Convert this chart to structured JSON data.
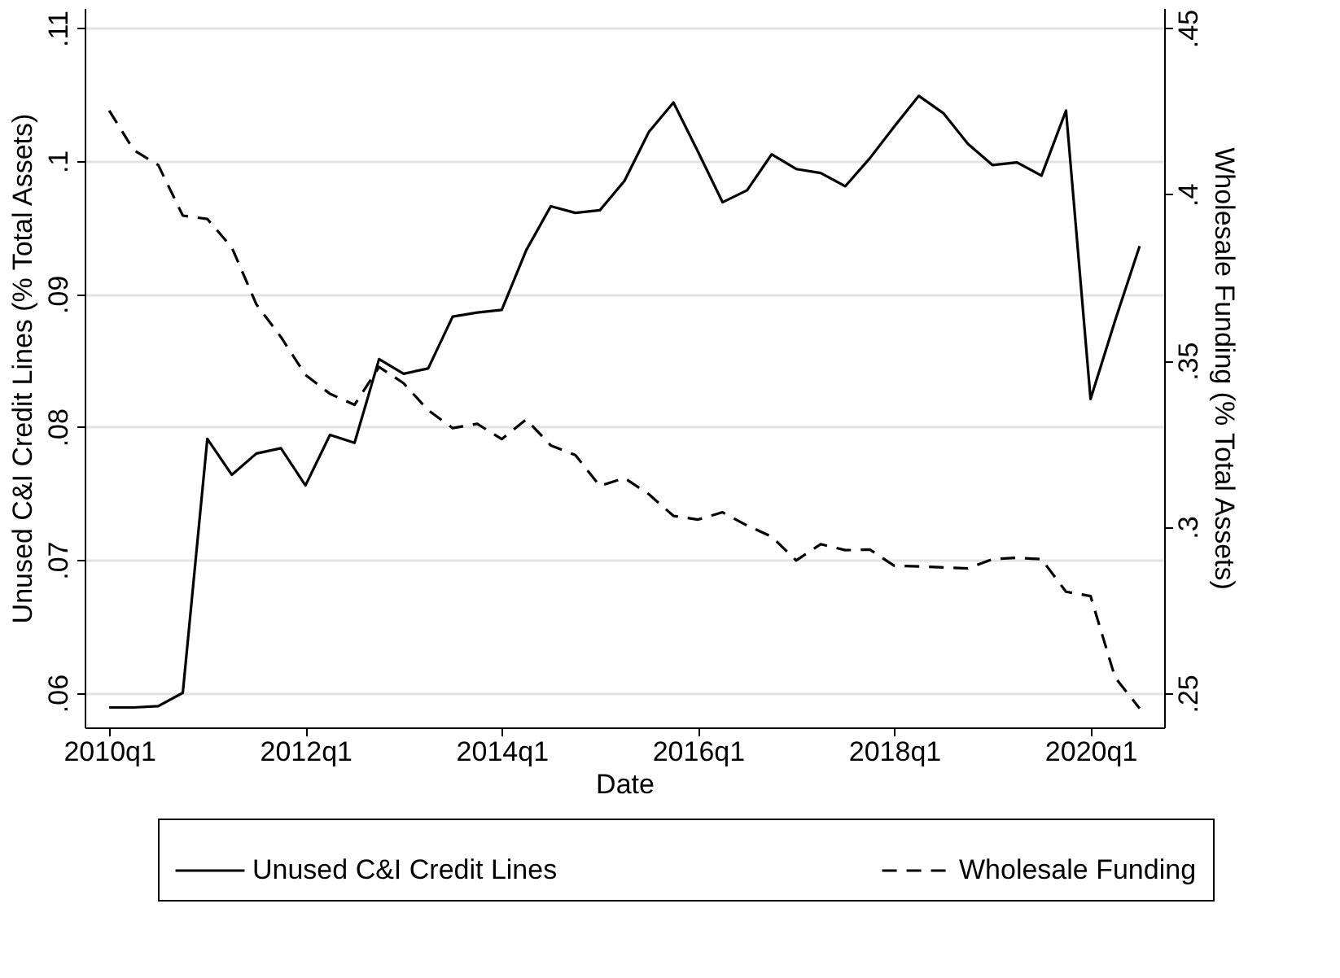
{
  "chart_data": {
    "type": "line",
    "xlabel": "Date",
    "ylabel": "Unused C&I Credit Lines (% Total Assets)",
    "y2label": "Wholesale Funding (% Total Assets)",
    "categories": [
      "2010q1",
      null,
      null,
      null,
      null,
      null,
      null,
      null,
      "2012q1",
      null,
      null,
      null,
      null,
      null,
      null,
      null,
      "2014q1",
      null,
      null,
      null,
      null,
      null,
      null,
      null,
      "2016q1",
      null,
      null,
      null,
      null,
      null,
      null,
      null,
      "2018q1",
      null,
      null,
      null,
      null,
      null,
      null,
      null,
      "2020q1",
      null,
      null
    ],
    "series": [
      {
        "name": "Unused C&I Credit Lines",
        "color": "#000000",
        "line_style": "solid",
        "values": [
          0.0589,
          0.0589,
          0.059,
          0.06,
          0.0791,
          0.0764,
          0.078,
          0.0784,
          0.0756,
          0.0794,
          0.0788,
          0.0851,
          0.084,
          0.0844,
          0.0883,
          0.0886,
          0.0888,
          0.0933,
          0.0966,
          0.0961,
          0.0963,
          0.0985,
          0.1022,
          0.1044,
          0.1007,
          0.0969,
          0.0978,
          0.1005,
          0.0994,
          0.0991,
          0.0981,
          0.1002,
          0.1026,
          0.1049,
          0.1036,
          0.1013,
          0.0997,
          0.0999,
          0.0989,
          0.1038,
          0.0821,
          0.088,
          0.0936
        ]
      },
      {
        "name": "Wholesale Funding",
        "color": "#000000",
        "line_style": "dashed",
        "axis": "y2",
        "values": [
          0.4252,
          0.4133,
          0.4088,
          0.3936,
          0.3926,
          0.384,
          0.3669,
          0.3571,
          0.3457,
          0.34,
          0.3367,
          0.3481,
          0.3432,
          0.3351,
          0.3297,
          0.331,
          0.3264,
          0.3323,
          0.3245,
          0.3216,
          0.3123,
          0.3147,
          0.3098,
          0.3033,
          0.3022,
          0.3044,
          0.3004,
          0.2971,
          0.2899,
          0.2948,
          0.293,
          0.2932,
          0.2883,
          0.2881,
          0.2878,
          0.2875,
          0.2903,
          0.2907,
          0.2903,
          0.2805,
          0.2792,
          0.2547,
          0.2454
        ]
      }
    ],
    "ylim": [
      0.0574,
      0.1115
    ],
    "yticks": [
      {
        "value": 0.06,
        "label": ".06"
      },
      {
        "value": 0.07,
        "label": ".07"
      },
      {
        "value": 0.08,
        "label": ".08"
      },
      {
        "value": 0.09,
        "label": ".09"
      },
      {
        "value": 0.1,
        "label": ".1"
      },
      {
        "value": 0.11,
        "label": ".11"
      }
    ],
    "y2lim": [
      0.2397,
      0.456
    ],
    "y2ticks": [
      {
        "value": 0.25,
        "label": ".25"
      },
      {
        "value": 0.3,
        "label": ".3"
      },
      {
        "value": 0.35,
        "label": ".35"
      },
      {
        "value": 0.4,
        "label": ".4"
      },
      {
        "value": 0.45,
        "label": ".45"
      }
    ],
    "grid": "y",
    "legend": "bottom"
  }
}
